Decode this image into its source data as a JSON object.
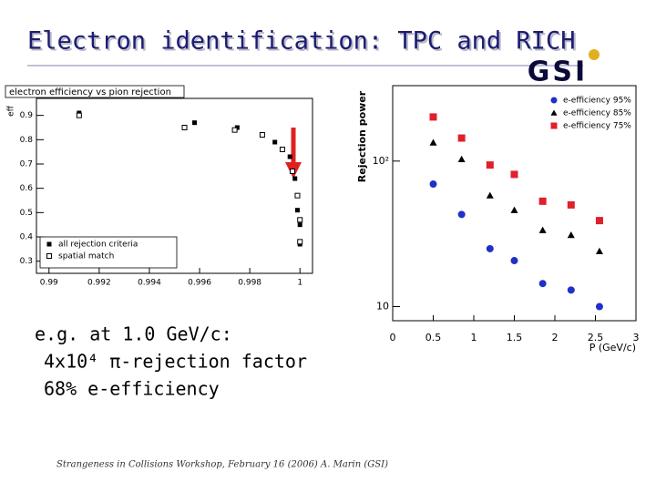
{
  "title": "Electron identification: TPC and RICH",
  "logo": "GSI",
  "notes": [
    "e.g. at 1.0 GeV/c:",
    "4x10⁴ π-rejection factor",
    "68% e-efficiency"
  ],
  "footer": {
    "event": "Strangeness in Collisions Workshop, February 16 (2006)",
    "author": "A. Marin (GSI)"
  },
  "chart_data": [
    {
      "type": "scatter",
      "title": "electron efficiency vs pion rejection",
      "y_label": "eff",
      "xlim": [
        0.9895,
        1.0005
      ],
      "ylim": [
        0.25,
        0.97
      ],
      "xticks": [
        0.99,
        0.992,
        0.994,
        0.996,
        0.998,
        1
      ],
      "yticks": [
        0.3,
        0.4,
        0.5,
        0.6,
        0.7,
        0.8,
        0.9
      ],
      "log_y": false,
      "legend": "lower-left",
      "series": [
        {
          "name": "all rejection criteria",
          "color": "#000000",
          "marker": "square",
          "x": [
            0.9912,
            0.9958,
            0.9975,
            0.999,
            0.9996,
            0.9998,
            0.9999,
            1,
            1
          ],
          "values": [
            0.91,
            0.87,
            0.85,
            0.79,
            0.73,
            0.64,
            0.51,
            0.45,
            0.37
          ]
        },
        {
          "name": "spatial match",
          "color": "#000000",
          "marker": "open-square",
          "x": [
            0.9912,
            0.9954,
            0.9974,
            0.9985,
            0.9993,
            0.9997,
            0.9999,
            1,
            1
          ],
          "values": [
            0.9,
            0.85,
            0.84,
            0.82,
            0.76,
            0.67,
            0.57,
            0.47,
            0.38
          ]
        }
      ]
    },
    {
      "type": "scatter",
      "x_label": "P (GeV/c)",
      "y_label": "Rejection power",
      "xlim": [
        0,
        3
      ],
      "ylim": [
        8,
        330
      ],
      "xticks": [
        0,
        0.5,
        1,
        1.5,
        2,
        2.5,
        3
      ],
      "yticks": [
        10,
        {
          "value": 100,
          "label": "10²"
        }
      ],
      "log_y": true,
      "legend": "upper-right",
      "series": [
        {
          "name": "e-efficiency 95%",
          "color": "#2030c8",
          "marker": "circle",
          "x": [
            0.5,
            0.85,
            1.2,
            1.5,
            1.85,
            2.2,
            2.55
          ],
          "values": [
            69.5,
            43,
            25,
            20.7,
            14.4,
            13,
            10
          ]
        },
        {
          "name": "e-efficiency 85%",
          "color": "#000000",
          "marker": "triangle",
          "x": [
            0.5,
            0.85,
            1.2,
            1.5,
            1.85,
            2.2,
            2.55
          ],
          "values": [
            134,
            103,
            58,
            46,
            33.5,
            31,
            24
          ]
        },
        {
          "name": "e-efficiency 75%",
          "color": "#e0202a",
          "marker": "square",
          "x": [
            0.5,
            0.85,
            1.2,
            1.5,
            1.85,
            2.2,
            2.55
          ],
          "values": [
            201,
            144,
            94,
            81,
            53,
            50,
            39
          ]
        }
      ]
    }
  ]
}
